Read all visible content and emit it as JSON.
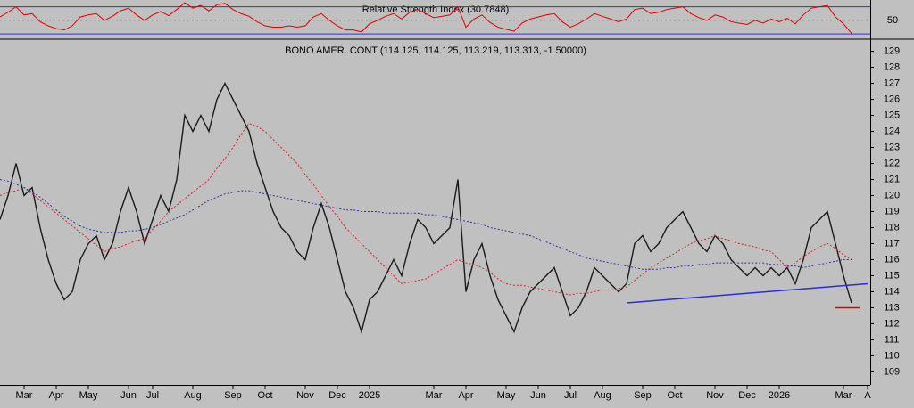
{
  "chart_data": {
    "type": "line",
    "title": "BONO AMER. CONT (114.125, 114.125, 113.219, 113.313, -1.50000)",
    "categories": [
      null,
      null,
      null,
      "Mar",
      null,
      null,
      null,
      "Apr",
      null,
      null,
      null,
      "May",
      null,
      null,
      null,
      null,
      "Jun",
      null,
      null,
      "Jul",
      null,
      null,
      null,
      null,
      "Aug",
      null,
      null,
      null,
      null,
      "Sep",
      null,
      null,
      null,
      "Oct",
      null,
      null,
      null,
      null,
      "Nov",
      null,
      null,
      null,
      "Dec",
      null,
      null,
      null,
      "2025",
      null,
      null,
      null,
      null,
      null,
      null,
      null,
      "Mar",
      null,
      null,
      null,
      "Apr",
      null,
      null,
      null,
      null,
      "May",
      null,
      null,
      null,
      "Jun",
      null,
      null,
      null,
      "Jul",
      null,
      null,
      null,
      "Aug",
      null,
      null,
      null,
      null,
      "Sep",
      null,
      null,
      null,
      "Oct",
      null,
      null,
      null,
      null,
      "Nov",
      null,
      null,
      null,
      "Dec",
      null,
      null,
      null,
      "2026",
      null,
      null,
      null,
      null,
      null,
      null,
      null,
      "Mar",
      null,
      null,
      "A"
    ],
    "ylim": [
      108.3,
      129.7
    ],
    "yticks": [
      109,
      110,
      111,
      112,
      113,
      114,
      115,
      116,
      117,
      118,
      119,
      120,
      121,
      122,
      123,
      124,
      125,
      126,
      127,
      128,
      129
    ],
    "series": [
      {
        "color": "#1a1a1a",
        "dash": false,
        "values": [
          118.5,
          120,
          122,
          120,
          120.5,
          118,
          116,
          114.5,
          113.5,
          114,
          116,
          117,
          117.5,
          116,
          117,
          119,
          120.5,
          119,
          117,
          118.5,
          120,
          119,
          121,
          125,
          124,
          125,
          124,
          126,
          127,
          126,
          125,
          124,
          122,
          120.5,
          119,
          118,
          117.5,
          116.5,
          116,
          118,
          119.5,
          118,
          116,
          114,
          113,
          111.5,
          113.5,
          114,
          115,
          116,
          115,
          117,
          118.5,
          118,
          117,
          117.5,
          118,
          121,
          114,
          116,
          117,
          115,
          113.5,
          112.5,
          111.5,
          113,
          114,
          114.5,
          115,
          115.5,
          114,
          112.5,
          113,
          114,
          115.5,
          115,
          114.5,
          114,
          114.5,
          117,
          117.5,
          116.5,
          117,
          118,
          118.5,
          119,
          118,
          117,
          116.5,
          117.5,
          117,
          116,
          115.5,
          115,
          115.5,
          115,
          115.5,
          115,
          115.5,
          114.5,
          116,
          118,
          118.5,
          119,
          117,
          115,
          113.3,
          null,
          null
        ]
      },
      {
        "color": "#e02020",
        "dash": true,
        "values": [
          120,
          120.2,
          120.3,
          120.5,
          120.1,
          119.7,
          119.3,
          118.9,
          118.5,
          118.1,
          117.7,
          117.3,
          116.9,
          116.5,
          116.7,
          116.8,
          117,
          117.2,
          117.3,
          117.9,
          118.4,
          119,
          119.4,
          119.8,
          120.2,
          120.6,
          121,
          121.7,
          122.3,
          123,
          123.8,
          124.5,
          124.3,
          124,
          123.5,
          123,
          122.5,
          122,
          121.3,
          120.7,
          120,
          119.3,
          118.7,
          118,
          117.5,
          117,
          116.5,
          116,
          115.5,
          115,
          114.5,
          114.6,
          114.7,
          114.8,
          115.1,
          115.4,
          115.7,
          116,
          115.8,
          115.7,
          115.5,
          115.2,
          114.8,
          114.5,
          114.4,
          114.4,
          114.3,
          114.2,
          114.1,
          114,
          113.9,
          113.8,
          113.9,
          113.9,
          114,
          114.1,
          114.1,
          114.2,
          114.3,
          114.7,
          115.1,
          115.5,
          115.8,
          116.1,
          116.4,
          116.7,
          117,
          117.2,
          117.3,
          117.5,
          117.3,
          117.2,
          117,
          116.9,
          116.8,
          116.6,
          116.5,
          116,
          115.5,
          115.8,
          116.2,
          116.5,
          116.8,
          117,
          116.7,
          116.3,
          116,
          null,
          null
        ]
      },
      {
        "color": "#3030a0",
        "dash": true,
        "values": [
          121,
          120.9,
          120.7,
          120.5,
          120.2,
          119.9,
          119.5,
          119.1,
          118.7,
          118.4,
          118.1,
          117.9,
          117.8,
          117.7,
          117.7,
          117.7,
          117.8,
          117.8,
          117.9,
          118,
          118.2,
          118.4,
          118.6,
          118.8,
          119.1,
          119.4,
          119.7,
          119.9,
          120.1,
          120.2,
          120.3,
          120.3,
          120.2,
          120.1,
          120,
          119.9,
          119.8,
          119.7,
          119.6,
          119.5,
          119.4,
          119.3,
          119.2,
          119.1,
          119.1,
          119,
          119,
          119,
          118.9,
          118.9,
          118.9,
          118.9,
          118.9,
          118.8,
          118.8,
          118.7,
          118.6,
          118.5,
          118.4,
          118.3,
          118.2,
          118,
          117.9,
          117.8,
          117.7,
          117.6,
          117.5,
          117.3,
          117.1,
          116.9,
          116.7,
          116.5,
          116.3,
          116.1,
          116,
          115.9,
          115.8,
          115.7,
          115.6,
          115.5,
          115.4,
          115.4,
          115.4,
          115.5,
          115.5,
          115.6,
          115.6,
          115.7,
          115.7,
          115.8,
          115.8,
          115.8,
          115.8,
          115.8,
          115.8,
          115.8,
          115.7,
          115.7,
          115.6,
          115.6,
          115.5,
          115.6,
          115.7,
          115.8,
          115.9,
          116,
          116,
          null,
          null
        ]
      }
    ],
    "trendlines": [
      {
        "color": "#2a2ae0",
        "from": [
          78,
          113.3
        ],
        "to": [
          108,
          114.5
        ]
      },
      {
        "color": "#e00000",
        "from": [
          104,
          113
        ],
        "to": [
          107,
          113
        ]
      }
    ],
    "rsi_panel": {
      "title": "Relative Strength Index (30.7848)",
      "ylim": [
        25,
        80
      ],
      "yticks": [
        50
      ],
      "levels": [
        30,
        70
      ],
      "level_color": "#3333cc",
      "color": "#e00000",
      "values": [
        55,
        62,
        70,
        58,
        60,
        48,
        42,
        38,
        36,
        42,
        55,
        58,
        60,
        50,
        56,
        64,
        68,
        58,
        50,
        58,
        63,
        57,
        66,
        76,
        68,
        72,
        64,
        73,
        75,
        66,
        60,
        56,
        48,
        42,
        40,
        40,
        42,
        40,
        42,
        55,
        60,
        50,
        42,
        36,
        36,
        33,
        45,
        50,
        56,
        60,
        52,
        62,
        66,
        60,
        54,
        56,
        58,
        70,
        40,
        52,
        58,
        47,
        40,
        37,
        34,
        46,
        52,
        55,
        58,
        60,
        48,
        40,
        45,
        52,
        60,
        56,
        52,
        48,
        52,
        66,
        68,
        60,
        62,
        66,
        68,
        70,
        60,
        54,
        50,
        58,
        55,
        48,
        46,
        44,
        50,
        46,
        52,
        48,
        53,
        45,
        58,
        68,
        70,
        72,
        55,
        45,
        30.8,
        null,
        null
      ]
    }
  }
}
